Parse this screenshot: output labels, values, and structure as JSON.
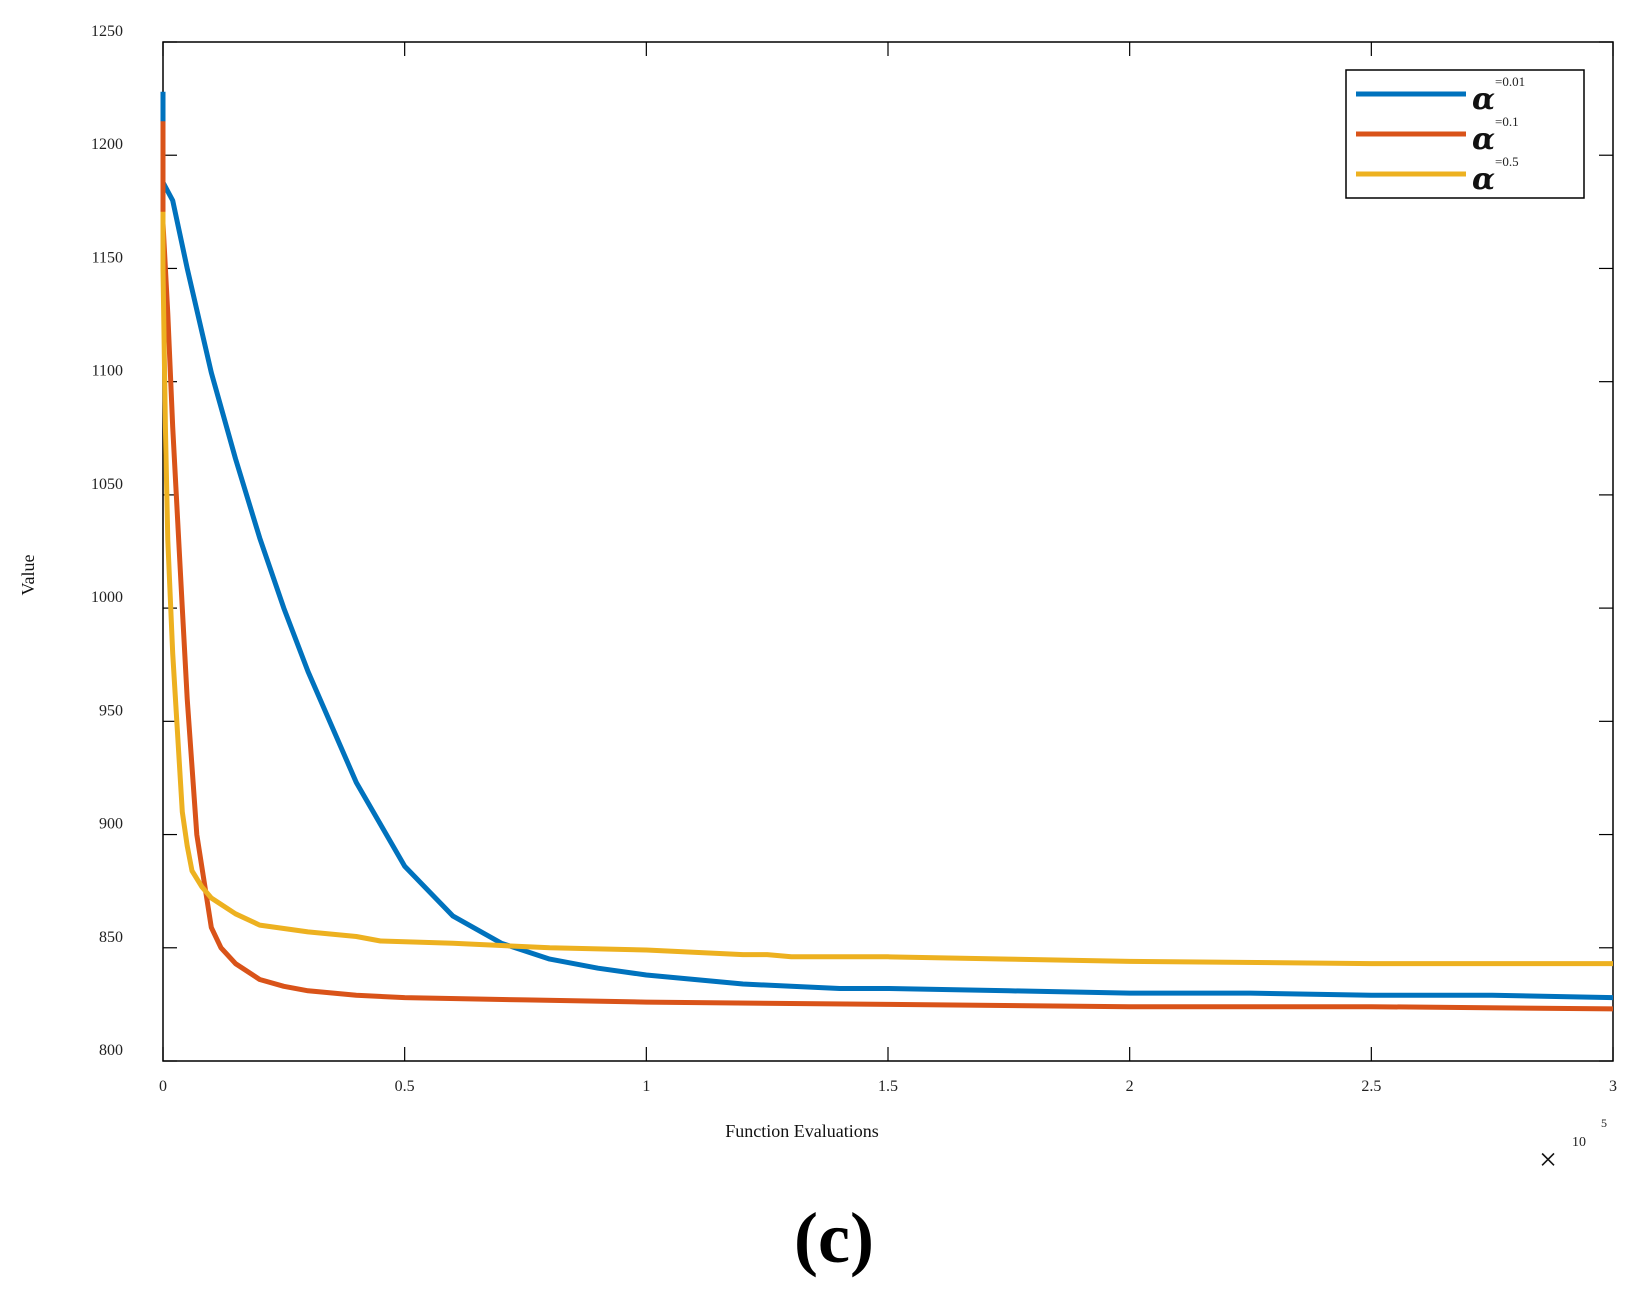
{
  "chart_data": {
    "type": "line",
    "title": "",
    "xlabel": "Function Evaluations",
    "ylabel": "Value",
    "x_multiplier": {
      "base": "10",
      "exponent": "5",
      "symbol": "×"
    },
    "xlim": [
      0,
      3
    ],
    "ylim": [
      800,
      1250
    ],
    "xticks": [
      "0",
      "0.5",
      "1",
      "1.5",
      "2",
      "2.5",
      "3"
    ],
    "yticks": [
      "800",
      "850",
      "900",
      "950",
      "1000",
      "1050",
      "1100",
      "1150",
      "1200",
      "1250"
    ],
    "grid": false,
    "legend_position": "top-right",
    "panel_label": "(c)",
    "series": [
      {
        "name": "α=0.01",
        "legend_symbol": "α",
        "legend_sup": "=0.01",
        "color": "#0072BD",
        "x": [
          0,
          0,
          0.02,
          0.05,
          0.1,
          0.15,
          0.2,
          0.25,
          0.3,
          0.4,
          0.5,
          0.6,
          0.7,
          0.8,
          0.9,
          1.0,
          1.1,
          1.2,
          1.3,
          1.4,
          1.5,
          1.75,
          2.0,
          2.25,
          2.5,
          2.75,
          3.0
        ],
        "y": [
          1228,
          1188,
          1180,
          1150,
          1104,
          1066,
          1031,
          1000,
          972,
          923,
          886,
          864,
          852,
          845,
          841,
          838,
          836,
          834,
          833,
          832,
          832,
          831,
          830,
          830,
          829,
          829,
          828
        ]
      },
      {
        "name": "α=0.1",
        "legend_symbol": "α",
        "legend_sup": "=0.1",
        "color": "#D95319",
        "x": [
          0,
          0,
          0.01,
          0.02,
          0.03,
          0.04,
          0.05,
          0.07,
          0.1,
          0.12,
          0.15,
          0.2,
          0.25,
          0.3,
          0.4,
          0.5,
          0.75,
          1.0,
          1.5,
          2.0,
          2.5,
          3.0
        ],
        "y": [
          1215,
          1170,
          1130,
          1080,
          1040,
          1000,
          960,
          900,
          859,
          850,
          843,
          836,
          833,
          831,
          829,
          828,
          827,
          826,
          825,
          824,
          824,
          823
        ]
      },
      {
        "name": "α=0.5",
        "legend_symbol": "α",
        "legend_sup": "=0.5",
        "color": "#EDB120",
        "x": [
          0,
          0,
          0.005,
          0.01,
          0.02,
          0.03,
          0.04,
          0.05,
          0.06,
          0.08,
          0.1,
          0.15,
          0.2,
          0.3,
          0.4,
          0.45,
          0.6,
          0.8,
          1.0,
          1.2,
          1.25,
          1.3,
          1.5,
          1.75,
          2.0,
          2.5,
          3.0
        ],
        "y": [
          1175,
          1150,
          1080,
          1030,
          980,
          945,
          910,
          895,
          884,
          877,
          872,
          865,
          860,
          857,
          855,
          853,
          852,
          850,
          849,
          847,
          847,
          846,
          846,
          845,
          844,
          843,
          843
        ]
      }
    ]
  }
}
